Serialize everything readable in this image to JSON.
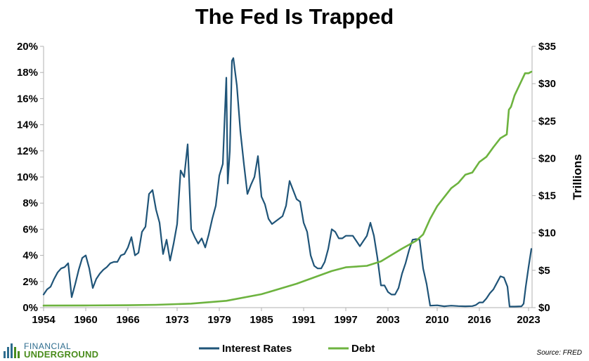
{
  "page": {
    "title": "The Fed Is Trapped",
    "logo_line1": "FINANCIAL",
    "logo_line2": "UNDERGROUND",
    "source": "Source: FRED"
  },
  "chart_data": {
    "type": "line",
    "title": "The Fed Is Trapped",
    "xlabel": "",
    "ylabel_left": "",
    "ylabel_right": "Trillions",
    "xlim": [
      1954,
      2023.5
    ],
    "ylim_left": [
      0,
      20
    ],
    "ylim_right": [
      0,
      35
    ],
    "x_ticks": [
      1954,
      1960,
      1966,
      1973,
      1979,
      1985,
      1991,
      1997,
      2003,
      2010,
      2016,
      2023
    ],
    "x_tick_labels": [
      "1954",
      "1960",
      "1966",
      "1973",
      "1979",
      "1985",
      "1991",
      "1997",
      "2003",
      "2010",
      "2016",
      "2023"
    ],
    "y_left_ticks": [
      0,
      2,
      4,
      6,
      8,
      10,
      12,
      14,
      16,
      18,
      20
    ],
    "y_left_tick_labels": [
      "0%",
      "2%",
      "4%",
      "6%",
      "8%",
      "10%",
      "12%",
      "14%",
      "16%",
      "18%",
      "20%"
    ],
    "y_right_ticks": [
      0,
      5,
      10,
      15,
      20,
      25,
      30,
      35
    ],
    "y_right_tick_labels": [
      "$0",
      "$5",
      "$10",
      "$15",
      "$20",
      "$25",
      "$30",
      "$35"
    ],
    "grid": false,
    "legend_position": "bottom",
    "series": [
      {
        "name": "Interest Rates",
        "axis": "left",
        "color": "#1f5478",
        "x": [
          1954.0,
          1954.5,
          1955.0,
          1955.5,
          1956.0,
          1956.5,
          1957.0,
          1957.5,
          1958.0,
          1958.5,
          1959.0,
          1959.5,
          1960.0,
          1960.5,
          1961.0,
          1961.5,
          1962.0,
          1962.5,
          1963.0,
          1963.5,
          1964.0,
          1964.5,
          1965.0,
          1965.5,
          1966.0,
          1966.5,
          1967.0,
          1967.5,
          1968.0,
          1968.5,
          1969.0,
          1969.5,
          1970.0,
          1970.5,
          1971.0,
          1971.5,
          1972.0,
          1972.5,
          1973.0,
          1973.5,
          1974.0,
          1974.5,
          1975.0,
          1975.5,
          1976.0,
          1976.5,
          1977.0,
          1977.5,
          1978.0,
          1978.5,
          1979.0,
          1979.5,
          1980.0,
          1980.2,
          1980.5,
          1980.8,
          1981.0,
          1981.5,
          1982.0,
          1982.5,
          1983.0,
          1983.5,
          1984.0,
          1984.5,
          1985.0,
          1985.5,
          1986.0,
          1986.5,
          1987.0,
          1987.5,
          1988.0,
          1988.5,
          1989.0,
          1989.5,
          1990.0,
          1990.5,
          1991.0,
          1991.5,
          1992.0,
          1992.5,
          1993.0,
          1993.5,
          1994.0,
          1994.5,
          1995.0,
          1995.5,
          1996.0,
          1996.5,
          1997.0,
          1997.5,
          1998.0,
          1998.5,
          1999.0,
          1999.5,
          2000.0,
          2000.5,
          2001.0,
          2001.5,
          2002.0,
          2002.5,
          2003.0,
          2003.5,
          2004.0,
          2004.5,
          2005.0,
          2005.5,
          2006.0,
          2006.5,
          2007.0,
          2007.5,
          2008.0,
          2008.5,
          2009.0,
          2010.0,
          2011.0,
          2012.0,
          2013.0,
          2014.0,
          2015.0,
          2015.5,
          2016.0,
          2016.5,
          2017.0,
          2017.5,
          2018.0,
          2018.5,
          2019.0,
          2019.5,
          2020.0,
          2020.3,
          2021.0,
          2022.0,
          2022.3,
          2022.6,
          2023.0,
          2023.4
        ],
        "values": [
          1.0,
          1.4,
          1.6,
          2.2,
          2.7,
          3.0,
          3.1,
          3.4,
          0.8,
          1.8,
          2.9,
          3.8,
          4.0,
          3.0,
          1.5,
          2.2,
          2.6,
          2.9,
          3.1,
          3.4,
          3.5,
          3.5,
          4.0,
          4.1,
          4.6,
          5.4,
          4.0,
          4.2,
          5.8,
          6.2,
          8.7,
          9.0,
          7.5,
          6.5,
          4.1,
          5.2,
          3.6,
          4.9,
          6.4,
          10.5,
          10.0,
          12.5,
          6.0,
          5.4,
          4.9,
          5.3,
          4.6,
          5.6,
          6.8,
          7.8,
          10.1,
          11.0,
          17.6,
          9.5,
          12.0,
          18.9,
          19.1,
          17.0,
          13.5,
          11.0,
          8.7,
          9.4,
          10.0,
          11.6,
          8.5,
          7.9,
          6.8,
          6.4,
          6.6,
          6.8,
          7.0,
          7.8,
          9.7,
          9.0,
          8.3,
          8.1,
          6.5,
          5.8,
          4.0,
          3.2,
          3.0,
          3.0,
          3.5,
          4.5,
          6.0,
          5.8,
          5.3,
          5.3,
          5.5,
          5.5,
          5.5,
          5.1,
          4.7,
          5.1,
          5.5,
          6.5,
          5.5,
          3.8,
          1.7,
          1.7,
          1.2,
          1.0,
          1.0,
          1.5,
          2.6,
          3.4,
          4.4,
          5.2,
          5.25,
          5.2,
          3.0,
          1.8,
          0.15,
          0.18,
          0.1,
          0.15,
          0.12,
          0.1,
          0.12,
          0.2,
          0.4,
          0.4,
          0.7,
          1.1,
          1.4,
          1.9,
          2.4,
          2.3,
          1.6,
          0.08,
          0.08,
          0.1,
          0.3,
          1.6,
          3.1,
          4.5
        ]
      },
      {
        "name": "Debt",
        "axis": "right",
        "color": "#6db33f",
        "x": [
          1954,
          1960,
          1966,
          1970,
          1975,
          1980,
          1985,
          1990,
          1995,
          1997,
          2000,
          2002,
          2005,
          2007,
          2008,
          2009,
          2010,
          2011,
          2012,
          2013,
          2014,
          2015,
          2016,
          2017,
          2018,
          2019,
          2019.9,
          2020.2,
          2020.5,
          2021,
          2022,
          2022.5,
          2023,
          2023.4
        ],
        "values": [
          0.27,
          0.29,
          0.32,
          0.38,
          0.54,
          0.91,
          1.8,
          3.2,
          4.9,
          5.4,
          5.6,
          6.2,
          7.9,
          8.95,
          9.8,
          11.9,
          13.6,
          14.8,
          16.0,
          16.7,
          17.8,
          18.1,
          19.5,
          20.2,
          21.5,
          22.7,
          23.2,
          26.5,
          26.9,
          28.4,
          30.4,
          31.4,
          31.4,
          31.6
        ]
      }
    ]
  }
}
